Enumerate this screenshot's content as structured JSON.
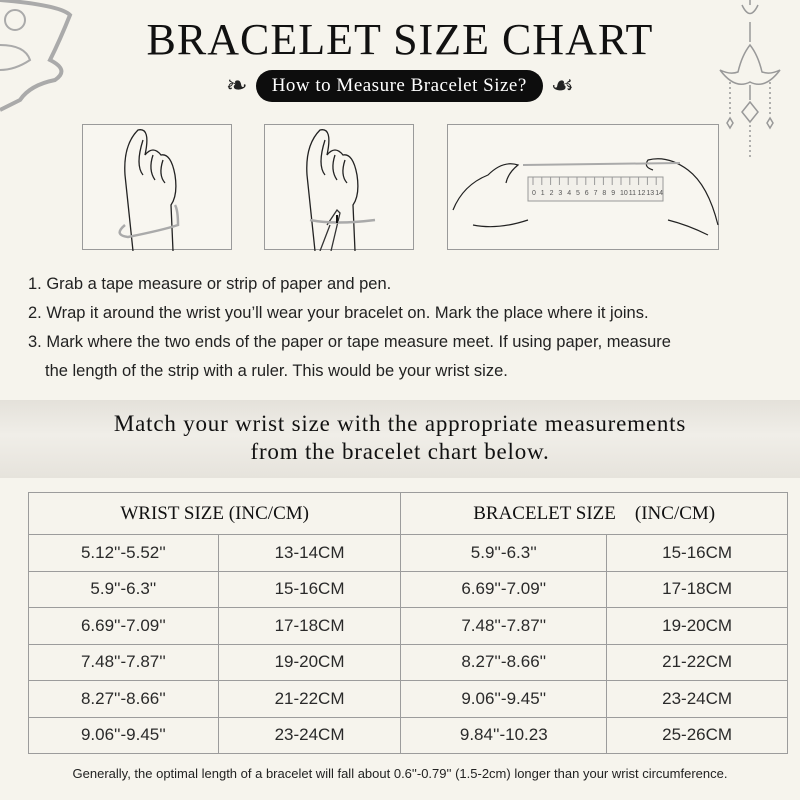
{
  "title": "BRACELET SIZE CHART",
  "subtitle": "How to Measure Bracelet Size?",
  "ruler_numbers": [
    "0",
    "1",
    "2",
    "3",
    "4",
    "5",
    "6",
    "7",
    "8",
    "9",
    "10",
    "11",
    "12",
    "13",
    "14"
  ],
  "steps": [
    "1. Grab a tape measure or strip of paper and pen.",
    "2. Wrap it around the wrist you’ll wear your bracelet on. Mark the place where it joins.",
    "3. Mark where the two ends of the paper or tape measure meet. If using paper, measure",
    "the length of the strip with a ruler. This would be your wrist size."
  ],
  "match_text": [
    "Match your wrist size with the appropriate measurements",
    "from the bracelet chart below."
  ],
  "table": {
    "headers": [
      "WRIST SIZE (INC/CM)",
      "BRACELET SIZE    (INC/CM)"
    ],
    "rows": [
      [
        "5.12''-5.52''",
        "13-14CM",
        "5.9''-6.3''",
        "15-16CM"
      ],
      [
        "5.9''-6.3''",
        "15-16CM",
        "6.69''-7.09''",
        "17-18CM"
      ],
      [
        "6.69''-7.09''",
        "17-18CM",
        "7.48''-7.87''",
        "19-20CM"
      ],
      [
        "7.48''-7.87''",
        "19-20CM",
        "8.27''-8.66''",
        "21-22CM"
      ],
      [
        "8.27''-8.66''",
        "21-22CM",
        "9.06''-9.45''",
        "23-24CM"
      ],
      [
        "9.06''-9.45''",
        "23-24CM",
        "9.84''-10.23",
        "25-26CM"
      ]
    ]
  },
  "note": "Generally, the optimal length of a bracelet will fall about 0.6''-0.79'' (1.5-2cm) longer than your wrist circumference.",
  "colors": {
    "background": "#f6f4ed",
    "pill": "#0d0d0d",
    "border": "#9c9c9c"
  }
}
